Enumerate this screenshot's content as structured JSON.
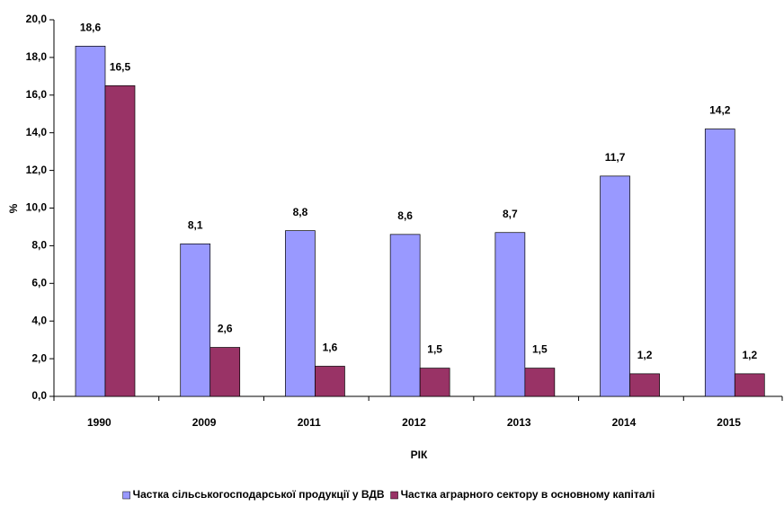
{
  "chart_data": {
    "type": "bar",
    "categories": [
      "1990",
      "2009",
      "2011",
      "2012",
      "2013",
      "2014",
      "2015"
    ],
    "series": [
      {
        "name": "Частка сільськогосподарської продукції у ВДВ",
        "color": "#9999ff",
        "values": [
          18.6,
          8.1,
          8.8,
          8.6,
          8.7,
          11.7,
          14.2
        ],
        "value_labels": [
          "18,6",
          "8,1",
          "8,8",
          "8,6",
          "8,7",
          "11,7",
          "14,2"
        ]
      },
      {
        "name": "Частка аграрного сектору в основному капіталі",
        "color": "#993366",
        "values": [
          16.5,
          2.6,
          1.6,
          1.5,
          1.5,
          1.2,
          1.2
        ],
        "value_labels": [
          "16,5",
          "2,6",
          "1,6",
          "1,5",
          "1,5",
          "1,2",
          "1,2"
        ]
      }
    ],
    "y_label": "%",
    "x_label": "РІК",
    "ylim": [
      0,
      20
    ],
    "yticks": [
      {
        "value": 0,
        "label": "0,0"
      },
      {
        "value": 2,
        "label": "2,0"
      },
      {
        "value": 4,
        "label": "4,0"
      },
      {
        "value": 6,
        "label": "6,0"
      },
      {
        "value": 8,
        "label": "8,0"
      },
      {
        "value": 10,
        "label": "10,0"
      },
      {
        "value": 12,
        "label": "12,0"
      },
      {
        "value": 14,
        "label": "14,0"
      },
      {
        "value": 16,
        "label": "16,0"
      },
      {
        "value": 18,
        "label": "18,0"
      },
      {
        "value": 20,
        "label": "20,0"
      }
    ],
    "grid": false,
    "legend": "bottom"
  }
}
